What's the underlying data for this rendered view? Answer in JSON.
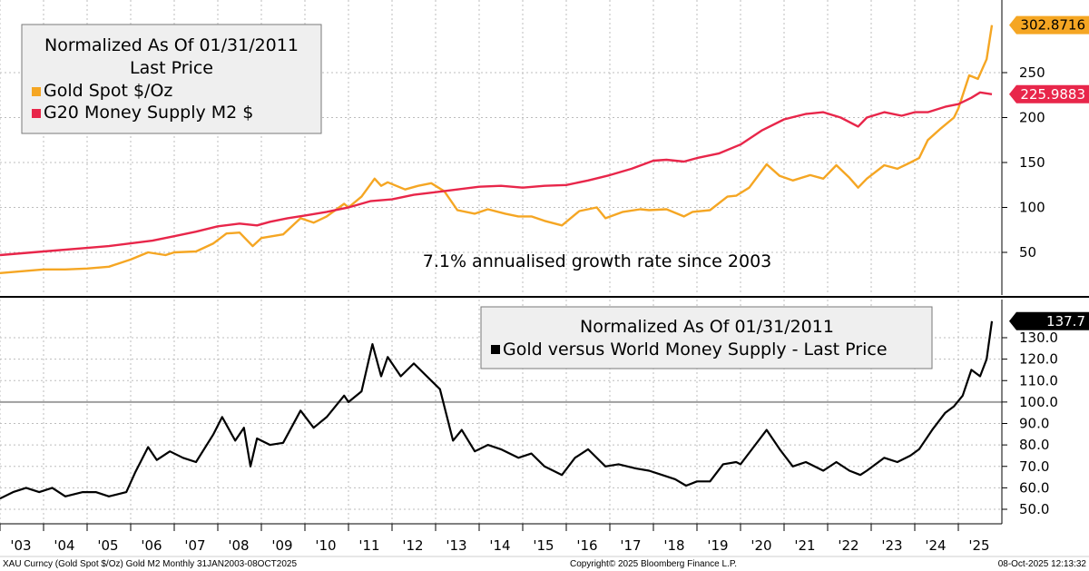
{
  "colors": {
    "gold": "#f5a623",
    "m2": "#e8264a",
    "ratio": "#000000",
    "reference_line": "#9e9e9e",
    "divider": "#000000"
  },
  "footer": {
    "left": "XAU Curncy (Gold Spot  $/Oz) Gold M2 Monthly 31JAN2003-08OCT2025",
    "center": "Copyright© 2025 Bloomberg Finance L.P.",
    "right": "08-Oct-2025 12:13:32"
  },
  "x_tick_labels": [
    "'03",
    "'04",
    "'05",
    "'06",
    "'07",
    "'08",
    "'09",
    "'10",
    "'11",
    "'12",
    "'13",
    "'14",
    "'15",
    "'16",
    "'17",
    "'18",
    "'19",
    "'20",
    "'21",
    "'22",
    "'23",
    "'24",
    "'25"
  ],
  "chart_data": [
    {
      "type": "line",
      "panel": "top",
      "legend": {
        "title_line1": "Normalized As Of 01/31/2011",
        "title_line2": "Last Price",
        "placement": "top-left",
        "entries": [
          "Gold Spot $/Oz",
          "G20 Money Supply M2 $"
        ]
      },
      "annotation": "7.1% annualised growth rate since 2003",
      "y_tick_labels": [
        "50",
        "100",
        "150",
        "200",
        "250"
      ],
      "ylim": [
        20,
        315
      ],
      "last_value_labels": [
        "302.8716",
        "225.9883"
      ],
      "series": [
        {
          "name": "Gold Spot $/Oz",
          "color": "#f5a623",
          "points": [
            [
              2003.0,
              27
            ],
            [
              2003.5,
              29
            ],
            [
              2004.0,
              31
            ],
            [
              2004.5,
              31
            ],
            [
              2005.0,
              32
            ],
            [
              2005.5,
              34
            ],
            [
              2006.0,
              42
            ],
            [
              2006.4,
              50
            ],
            [
              2006.8,
              47
            ],
            [
              2007.0,
              50
            ],
            [
              2007.5,
              51
            ],
            [
              2007.9,
              60
            ],
            [
              2008.2,
              71
            ],
            [
              2008.5,
              72
            ],
            [
              2008.8,
              57
            ],
            [
              2009.0,
              66
            ],
            [
              2009.5,
              70
            ],
            [
              2009.9,
              88
            ],
            [
              2010.2,
              83
            ],
            [
              2010.5,
              90
            ],
            [
              2010.9,
              104
            ],
            [
              2011.0,
              100
            ],
            [
              2011.3,
              112
            ],
            [
              2011.6,
              132
            ],
            [
              2011.75,
              124
            ],
            [
              2011.9,
              128
            ],
            [
              2012.3,
              120
            ],
            [
              2012.6,
              124
            ],
            [
              2012.9,
              127
            ],
            [
              2013.2,
              118
            ],
            [
              2013.5,
              97
            ],
            [
              2013.9,
              93
            ],
            [
              2014.2,
              98
            ],
            [
              2014.6,
              93
            ],
            [
              2014.9,
              90
            ],
            [
              2015.2,
              90
            ],
            [
              2015.5,
              85
            ],
            [
              2015.9,
              80
            ],
            [
              2016.3,
              96
            ],
            [
              2016.7,
              100
            ],
            [
              2016.9,
              88
            ],
            [
              2017.3,
              95
            ],
            [
              2017.7,
              98
            ],
            [
              2017.9,
              97
            ],
            [
              2018.3,
              98
            ],
            [
              2018.7,
              90
            ],
            [
              2018.9,
              95
            ],
            [
              2019.3,
              97
            ],
            [
              2019.7,
              112
            ],
            [
              2019.9,
              113
            ],
            [
              2020.2,
              122
            ],
            [
              2020.6,
              148
            ],
            [
              2020.9,
              135
            ],
            [
              2021.2,
              130
            ],
            [
              2021.6,
              136
            ],
            [
              2021.9,
              132
            ],
            [
              2022.2,
              147
            ],
            [
              2022.5,
              133
            ],
            [
              2022.7,
              122
            ],
            [
              2022.9,
              132
            ],
            [
              2023.3,
              147
            ],
            [
              2023.6,
              143
            ],
            [
              2023.9,
              150
            ],
            [
              2024.1,
              155
            ],
            [
              2024.3,
              175
            ],
            [
              2024.6,
              188
            ],
            [
              2024.9,
              200
            ],
            [
              2025.0,
              210
            ],
            [
              2025.25,
              247
            ],
            [
              2025.45,
              243
            ],
            [
              2025.65,
              265
            ],
            [
              2025.77,
              302.87
            ]
          ]
        },
        {
          "name": "G20 Money Supply M2 $",
          "color": "#e8264a",
          "points": [
            [
              2003.0,
              47
            ],
            [
              2004.0,
              51
            ],
            [
              2005.0,
              55
            ],
            [
              2005.5,
              57
            ],
            [
              2006.0,
              60
            ],
            [
              2006.5,
              63
            ],
            [
              2007.0,
              68
            ],
            [
              2007.5,
              73
            ],
            [
              2008.0,
              79
            ],
            [
              2008.5,
              82
            ],
            [
              2008.9,
              80
            ],
            [
              2009.2,
              84
            ],
            [
              2009.6,
              88
            ],
            [
              2010.0,
              91
            ],
            [
              2010.5,
              95
            ],
            [
              2011.0,
              100
            ],
            [
              2011.5,
              107
            ],
            [
              2012.0,
              109
            ],
            [
              2012.5,
              114
            ],
            [
              2013.0,
              117
            ],
            [
              2013.5,
              120
            ],
            [
              2014.0,
              123
            ],
            [
              2014.5,
              124
            ],
            [
              2015.0,
              122
            ],
            [
              2015.5,
              124
            ],
            [
              2016.0,
              125
            ],
            [
              2016.5,
              130
            ],
            [
              2017.0,
              136
            ],
            [
              2017.5,
              143
            ],
            [
              2018.0,
              152
            ],
            [
              2018.3,
              153
            ],
            [
              2018.7,
              151
            ],
            [
              2019.0,
              155
            ],
            [
              2019.5,
              160
            ],
            [
              2020.0,
              170
            ],
            [
              2020.5,
              186
            ],
            [
              2021.0,
              198
            ],
            [
              2021.5,
              204
            ],
            [
              2021.9,
              206
            ],
            [
              2022.3,
              200
            ],
            [
              2022.7,
              190
            ],
            [
              2022.9,
              200
            ],
            [
              2023.3,
              206
            ],
            [
              2023.7,
              202
            ],
            [
              2024.0,
              206
            ],
            [
              2024.3,
              206
            ],
            [
              2024.7,
              212
            ],
            [
              2025.0,
              215
            ],
            [
              2025.3,
              222
            ],
            [
              2025.5,
              228
            ],
            [
              2025.77,
              225.99
            ]
          ]
        }
      ]
    },
    {
      "type": "line",
      "panel": "bottom",
      "legend": {
        "title_line1": "Normalized As Of 01/31/2011",
        "entries": [
          "Gold versus World Money Supply - Last Price"
        ],
        "placement": "top-right"
      },
      "y_tick_labels": [
        "50.0",
        "60.0",
        "70.0",
        "80.0",
        "90.0",
        "100.0",
        "110.0",
        "120.0",
        "130.0"
      ],
      "ylim": [
        45,
        145
      ],
      "reference_line": 100,
      "last_value_label": "137.7",
      "series": [
        {
          "name": "Gold versus World Money Supply - Last Price",
          "color": "#000000",
          "points": [
            [
              2003.0,
              55
            ],
            [
              2003.3,
              58
            ],
            [
              2003.6,
              60
            ],
            [
              2003.9,
              58
            ],
            [
              2004.2,
              60
            ],
            [
              2004.5,
              56
            ],
            [
              2004.9,
              58
            ],
            [
              2005.2,
              58
            ],
            [
              2005.5,
              56
            ],
            [
              2005.9,
              58
            ],
            [
              2006.1,
              67
            ],
            [
              2006.4,
              79
            ],
            [
              2006.6,
              73
            ],
            [
              2006.9,
              77
            ],
            [
              2007.2,
              74
            ],
            [
              2007.5,
              72
            ],
            [
              2007.9,
              85
            ],
            [
              2008.1,
              93
            ],
            [
              2008.4,
              82
            ],
            [
              2008.6,
              88
            ],
            [
              2008.75,
              70
            ],
            [
              2008.9,
              83
            ],
            [
              2009.2,
              80
            ],
            [
              2009.5,
              81
            ],
            [
              2009.9,
              96
            ],
            [
              2010.2,
              88
            ],
            [
              2010.5,
              93
            ],
            [
              2010.9,
              103
            ],
            [
              2011.0,
              100
            ],
            [
              2011.3,
              105
            ],
            [
              2011.55,
              127
            ],
            [
              2011.75,
              112
            ],
            [
              2011.9,
              121
            ],
            [
              2012.2,
              112
            ],
            [
              2012.5,
              118
            ],
            [
              2012.9,
              110
            ],
            [
              2013.1,
              106
            ],
            [
              2013.4,
              82
            ],
            [
              2013.6,
              87
            ],
            [
              2013.9,
              77
            ],
            [
              2014.2,
              80
            ],
            [
              2014.5,
              78
            ],
            [
              2014.9,
              74
            ],
            [
              2015.2,
              76
            ],
            [
              2015.5,
              70
            ],
            [
              2015.9,
              66
            ],
            [
              2016.2,
              74
            ],
            [
              2016.5,
              78
            ],
            [
              2016.9,
              70
            ],
            [
              2017.2,
              71
            ],
            [
              2017.6,
              69
            ],
            [
              2017.9,
              68
            ],
            [
              2018.2,
              66
            ],
            [
              2018.5,
              64
            ],
            [
              2018.75,
              61
            ],
            [
              2019.0,
              63
            ],
            [
              2019.3,
              63
            ],
            [
              2019.6,
              71
            ],
            [
              2019.9,
              72
            ],
            [
              2020.0,
              71
            ],
            [
              2020.3,
              79
            ],
            [
              2020.6,
              87
            ],
            [
              2020.9,
              78
            ],
            [
              2021.2,
              70
            ],
            [
              2021.5,
              72
            ],
            [
              2021.9,
              68
            ],
            [
              2022.2,
              72
            ],
            [
              2022.5,
              68
            ],
            [
              2022.75,
              66
            ],
            [
              2022.9,
              68
            ],
            [
              2023.3,
              74
            ],
            [
              2023.6,
              72
            ],
            [
              2023.9,
              75
            ],
            [
              2024.1,
              78
            ],
            [
              2024.4,
              87
            ],
            [
              2024.7,
              95
            ],
            [
              2024.9,
              98
            ],
            [
              2025.1,
              103
            ],
            [
              2025.3,
              115
            ],
            [
              2025.5,
              112
            ],
            [
              2025.65,
              120
            ],
            [
              2025.77,
              137.7
            ]
          ]
        }
      ]
    }
  ]
}
